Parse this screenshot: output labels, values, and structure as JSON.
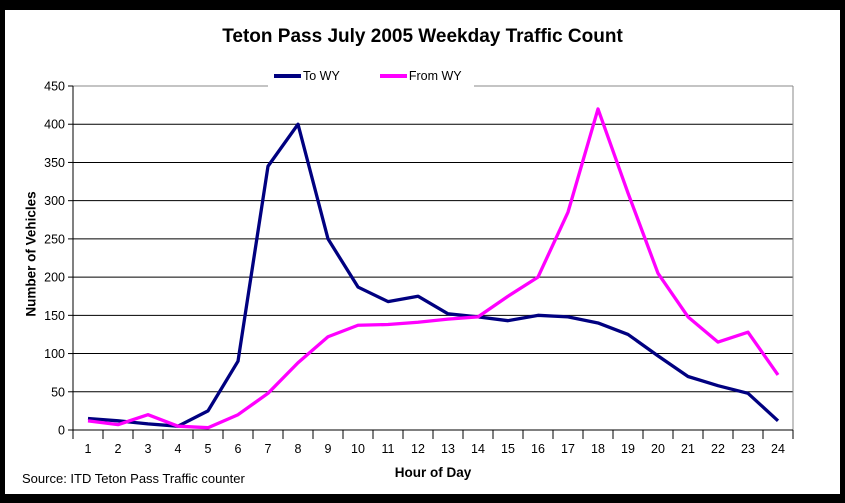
{
  "source_note": "Source: ITD Teton Pass Traffic counter",
  "chart_data": {
    "type": "line",
    "title": "Teton Pass July 2005 Weekday Traffic Count",
    "xlabel": "Hour of Day",
    "ylabel": "Number of Vehicles",
    "x": [
      1,
      2,
      3,
      4,
      5,
      6,
      7,
      8,
      9,
      10,
      11,
      12,
      13,
      14,
      15,
      16,
      17,
      18,
      19,
      20,
      21,
      22,
      23,
      24
    ],
    "series": [
      {
        "name": "To WY",
        "color": "#000080",
        "values": [
          15,
          12,
          8,
          5,
          25,
          90,
          345,
          400,
          250,
          187,
          168,
          175,
          152,
          148,
          143,
          150,
          148,
          140,
          125,
          97,
          70,
          58,
          48,
          12
        ]
      },
      {
        "name": "From WY",
        "color": "#FF00FF",
        "values": [
          12,
          7,
          20,
          5,
          3,
          20,
          48,
          88,
          122,
          137,
          138,
          141,
          145,
          148,
          175,
          200,
          285,
          420,
          310,
          205,
          148,
          115,
          128,
          72
        ]
      }
    ],
    "ylim": [
      0,
      450
    ],
    "yticks": [
      0,
      50,
      100,
      150,
      200,
      250,
      300,
      350,
      400,
      450
    ],
    "grid": "horizontal",
    "legend_position": "top-inside",
    "colors": {
      "gridline": "#000000",
      "axis": "#000000",
      "plot_border": "#888888",
      "text": "#000000",
      "background": "#FFFFFF",
      "frame_border": "#000000"
    }
  }
}
